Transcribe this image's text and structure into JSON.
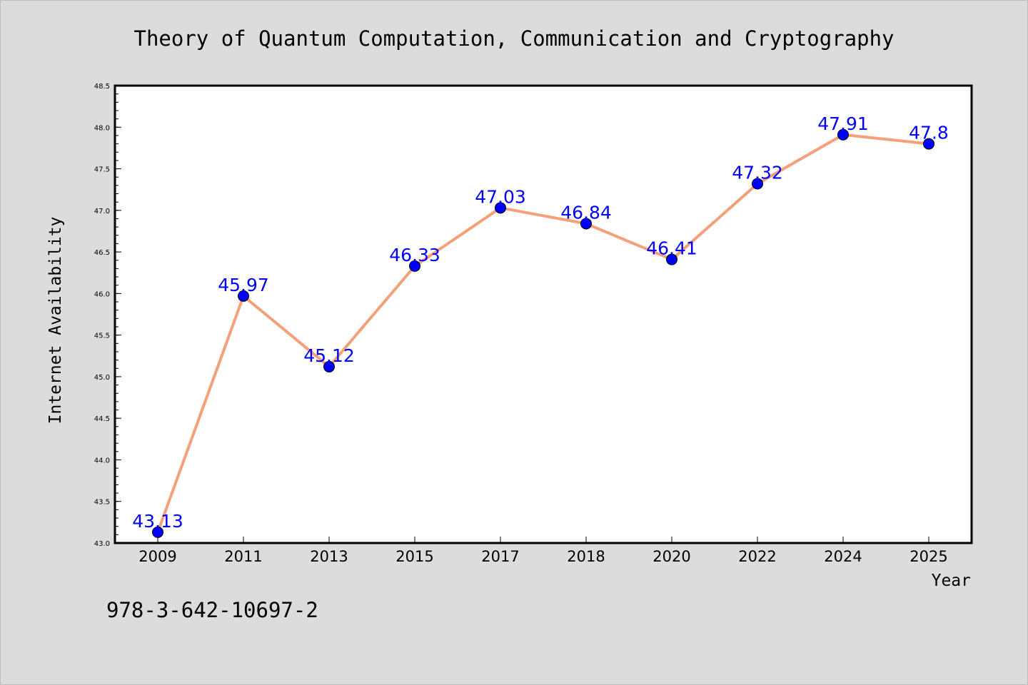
{
  "chart_data": {
    "type": "line",
    "title": "Theory of Quantum Computation, Communication and Cryptography",
    "xlabel": "Year",
    "ylabel": "Internet Availability",
    "annotation": "978-3-642-10697-2",
    "categories": [
      "2009",
      "2011",
      "2013",
      "2015",
      "2017",
      "2018",
      "2020",
      "2022",
      "2024",
      "2025"
    ],
    "values": [
      43.13,
      45.97,
      45.12,
      46.33,
      47.03,
      46.84,
      46.41,
      47.32,
      47.91,
      47.8
    ],
    "data_labels": [
      "43.13",
      "45.97",
      "45.12",
      "46.33",
      "47.03",
      "46.84",
      "46.41",
      "47.32",
      "47.91",
      "47.8"
    ],
    "ylim": [
      43.0,
      48.5
    ],
    "y_ticks": [
      "43.0",
      "43.5",
      "44.0",
      "44.5",
      "45.0",
      "45.5",
      "46.0",
      "46.5",
      "47.0",
      "47.5",
      "48.0",
      "48.5"
    ],
    "grid": false,
    "legend": "none",
    "colors": {
      "background": "#dcdcdc",
      "plot_background": "#ffffff",
      "line": "#f4a07a",
      "marker": "#0000ff",
      "data_label": "#0000ff"
    }
  }
}
